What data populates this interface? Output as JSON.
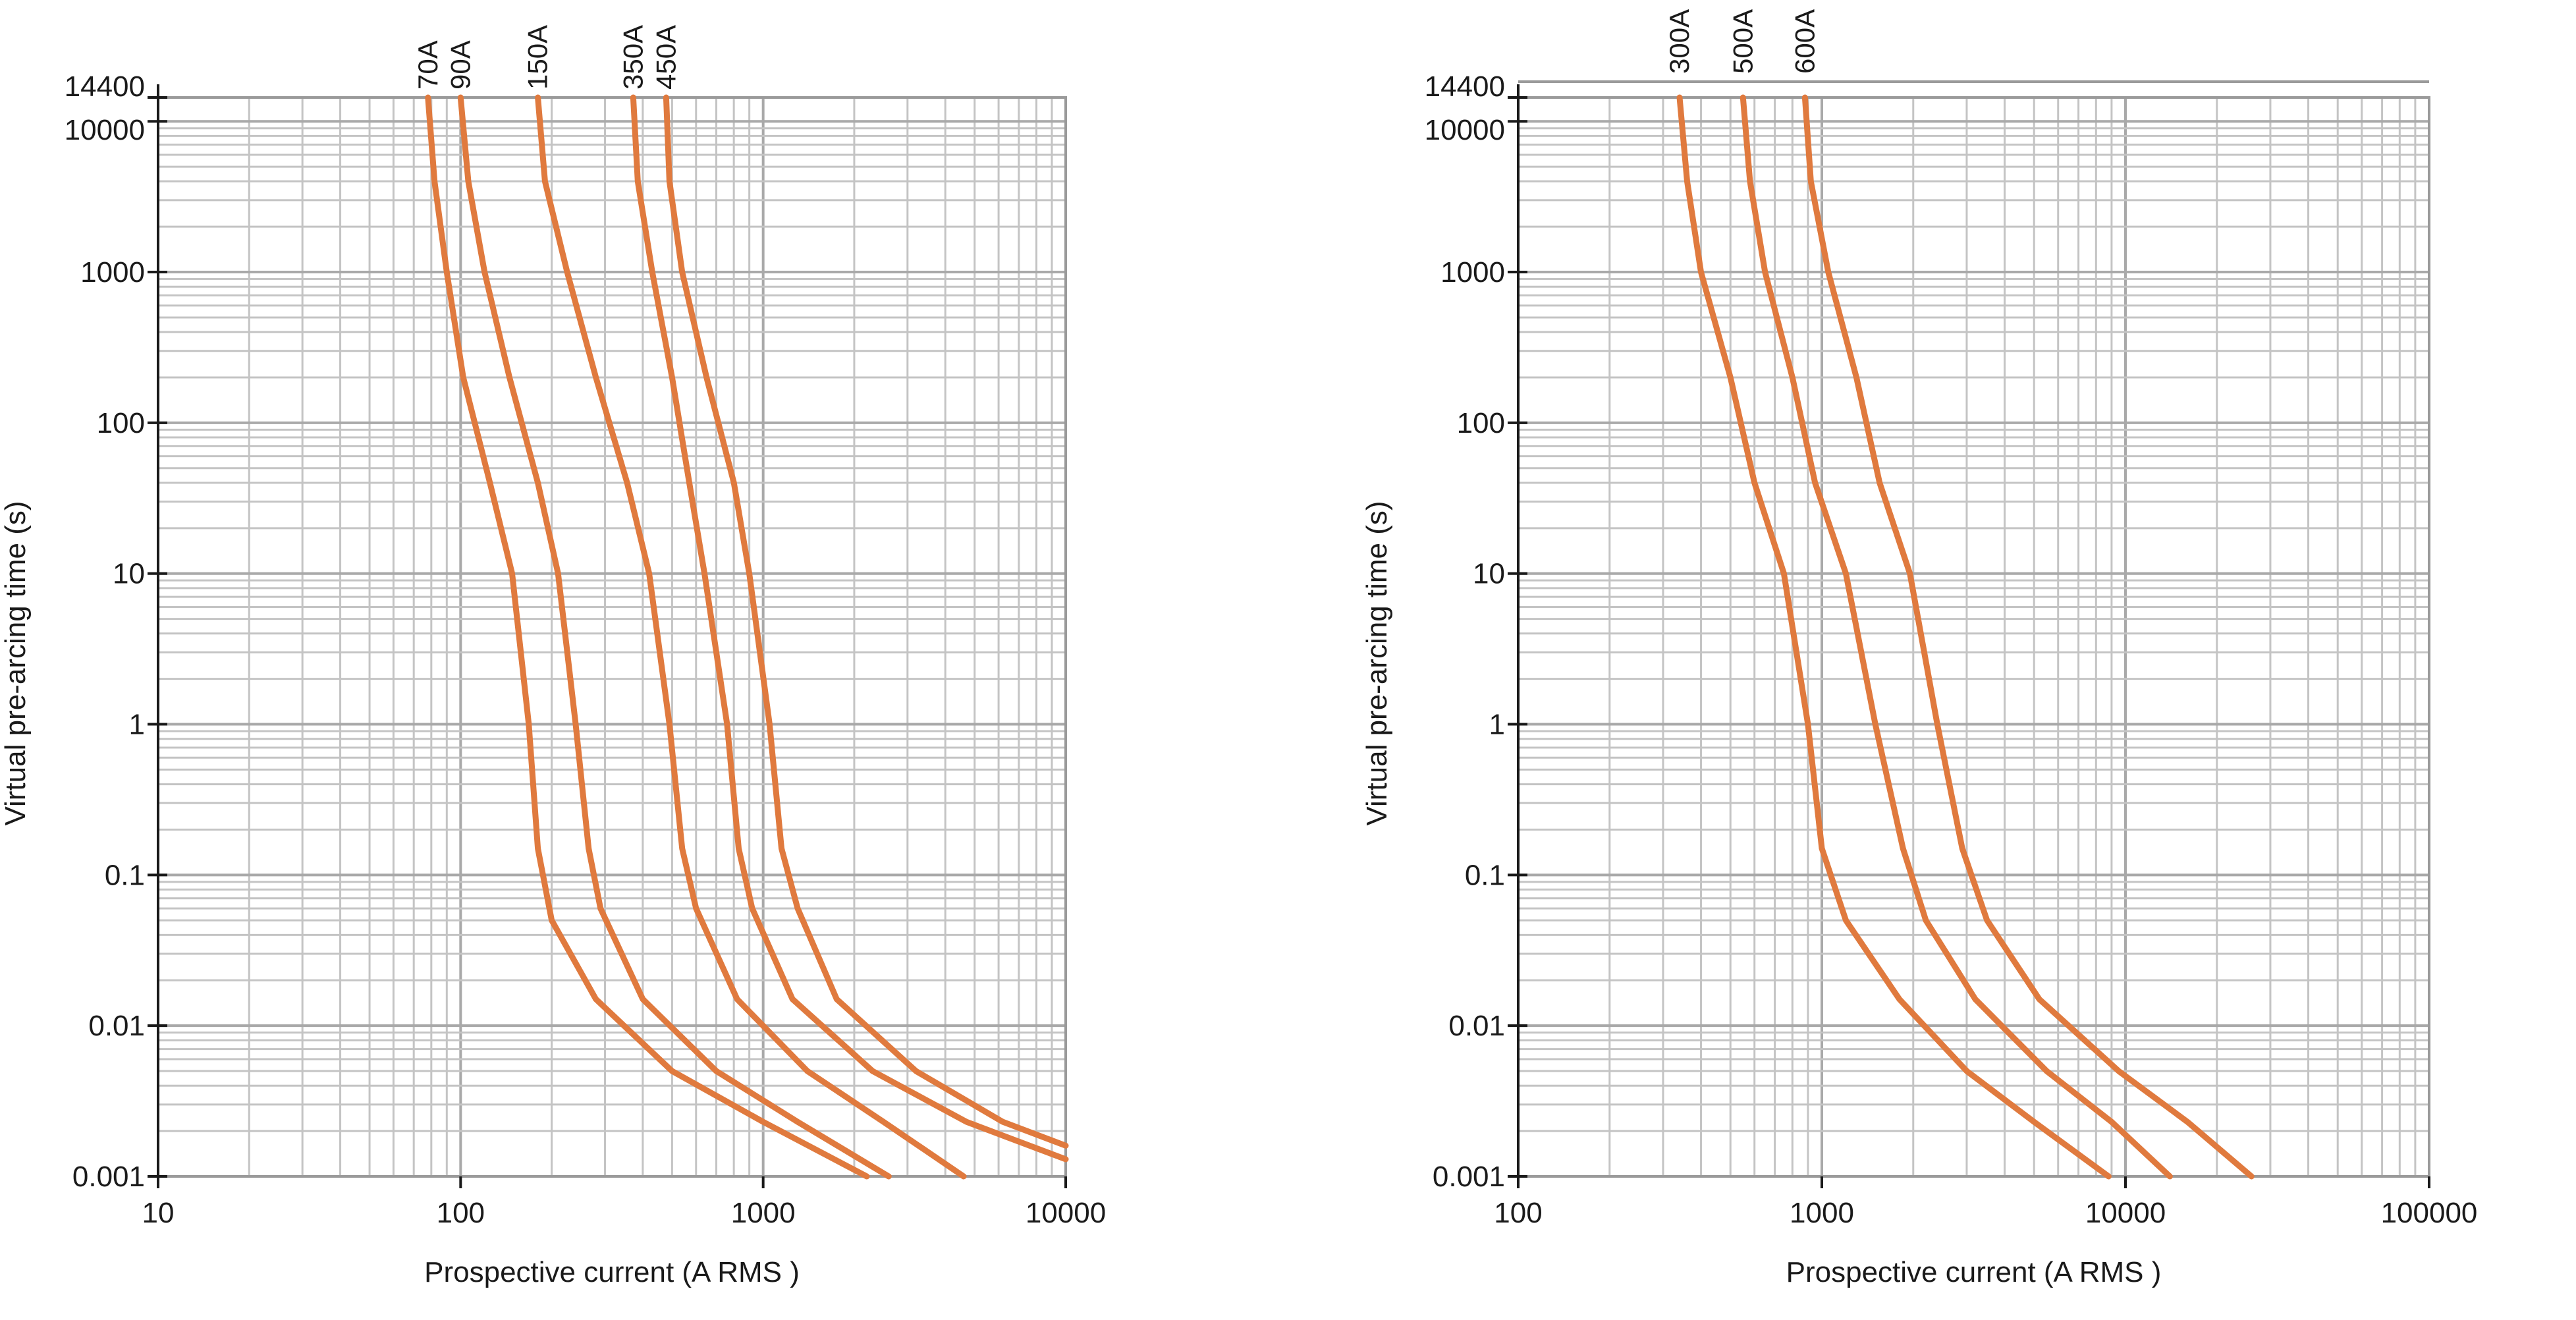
{
  "colors": {
    "curve": "#e07a3e",
    "grid": "#c4c4c4",
    "text": "#1a1a1a"
  },
  "chart_data": [
    {
      "type": "line",
      "scale": "log-log",
      "xlabel": "Prospective current (A RMS )",
      "ylabel": "Virtual pre-arcing time (s)",
      "xlim": [
        10,
        10000
      ],
      "ylim": [
        0.001,
        14400
      ],
      "x_ticks": [
        {
          "value": 10,
          "label": "10"
        },
        {
          "value": 100,
          "label": "100"
        },
        {
          "value": 1000,
          "label": "1000"
        },
        {
          "value": 10000,
          "label": "10000"
        }
      ],
      "y_ticks": [
        {
          "value": 0.001,
          "label": "0.001"
        },
        {
          "value": 0.01,
          "label": "0.01"
        },
        {
          "value": 0.1,
          "label": "0.1"
        },
        {
          "value": 1,
          "label": "1"
        },
        {
          "value": 10,
          "label": "10"
        },
        {
          "value": 100,
          "label": "100"
        },
        {
          "value": 1000,
          "label": "1000"
        },
        {
          "value": 10000,
          "label": "10000"
        },
        {
          "value": 14400,
          "label": "14400"
        }
      ],
      "series": [
        {
          "name": "70A",
          "points": [
            [
              78,
              14400
            ],
            [
              82,
              4000
            ],
            [
              90,
              1000
            ],
            [
              102,
              200
            ],
            [
              125,
              40
            ],
            [
              148,
              10
            ],
            [
              168,
              1
            ],
            [
              180,
              0.15
            ],
            [
              200,
              0.05
            ],
            [
              280,
              0.015
            ],
            [
              500,
              0.005
            ],
            [
              1000,
              0.0023
            ],
            [
              2200,
              0.001
            ]
          ]
        },
        {
          "name": "90A",
          "points": [
            [
              100,
              14400
            ],
            [
              106,
              4000
            ],
            [
              120,
              1000
            ],
            [
              145,
              200
            ],
            [
              180,
              40
            ],
            [
              210,
              10
            ],
            [
              240,
              1
            ],
            [
              265,
              0.15
            ],
            [
              290,
              0.06
            ],
            [
              400,
              0.015
            ],
            [
              700,
              0.005
            ],
            [
              1300,
              0.0023
            ],
            [
              2600,
              0.001
            ]
          ]
        },
        {
          "name": "150A",
          "points": [
            [
              180,
              14400
            ],
            [
              190,
              4000
            ],
            [
              225,
              1000
            ],
            [
              280,
              200
            ],
            [
              355,
              40
            ],
            [
              420,
              10
            ],
            [
              490,
              1
            ],
            [
              540,
              0.15
            ],
            [
              600,
              0.06
            ],
            [
              820,
              0.015
            ],
            [
              1400,
              0.005
            ],
            [
              2500,
              0.0023
            ],
            [
              4600,
              0.001
            ]
          ]
        },
        {
          "name": "350A",
          "points": [
            [
              372,
              14400
            ],
            [
              385,
              4000
            ],
            [
              430,
              1000
            ],
            [
              500,
              200
            ],
            [
              570,
              40
            ],
            [
              640,
              10
            ],
            [
              760,
              1
            ],
            [
              830,
              0.15
            ],
            [
              920,
              0.06
            ],
            [
              1250,
              0.015
            ],
            [
              2300,
              0.005
            ],
            [
              4700,
              0.0023
            ],
            [
              10000,
              0.0013
            ]
          ]
        },
        {
          "name": "450A",
          "points": [
            [
              478,
              14400
            ],
            [
              490,
              4000
            ],
            [
              540,
              1000
            ],
            [
              650,
              200
            ],
            [
              800,
              40
            ],
            [
              900,
              10
            ],
            [
              1050,
              1
            ],
            [
              1150,
              0.15
            ],
            [
              1300,
              0.06
            ],
            [
              1750,
              0.015
            ],
            [
              3200,
              0.005
            ],
            [
              6200,
              0.0023
            ],
            [
              10000,
              0.0016
            ]
          ]
        }
      ]
    },
    {
      "type": "line",
      "scale": "log-log",
      "xlabel": "Prospective current (A RMS )",
      "ylabel": "Virtual pre-arcing time (s)",
      "xlim": [
        100,
        100000
      ],
      "ylim": [
        0.001,
        14400
      ],
      "x_ticks": [
        {
          "value": 100,
          "label": "100"
        },
        {
          "value": 1000,
          "label": "1000"
        },
        {
          "value": 10000,
          "label": "10000"
        },
        {
          "value": 100000,
          "label": "100000"
        }
      ],
      "y_ticks": [
        {
          "value": 0.001,
          "label": "0.001"
        },
        {
          "value": 0.01,
          "label": "0.01"
        },
        {
          "value": 0.1,
          "label": "0.1"
        },
        {
          "value": 1,
          "label": "1"
        },
        {
          "value": 10,
          "label": "10"
        },
        {
          "value": 100,
          "label": "100"
        },
        {
          "value": 1000,
          "label": "1000"
        },
        {
          "value": 10000,
          "label": "10000"
        },
        {
          "value": 14400,
          "label": "14400"
        }
      ],
      "series": [
        {
          "name": "300A",
          "points": [
            [
              340,
              14400
            ],
            [
              360,
              4000
            ],
            [
              400,
              1000
            ],
            [
              500,
              200
            ],
            [
              600,
              40
            ],
            [
              750,
              10
            ],
            [
              900,
              1
            ],
            [
              1000,
              0.15
            ],
            [
              1200,
              0.05
            ],
            [
              1800,
              0.015
            ],
            [
              3000,
              0.005
            ],
            [
              5000,
              0.0023
            ],
            [
              8800,
              0.001
            ]
          ]
        },
        {
          "name": "500A",
          "points": [
            [
              550,
              14400
            ],
            [
              580,
              4000
            ],
            [
              650,
              1000
            ],
            [
              800,
              200
            ],
            [
              950,
              40
            ],
            [
              1200,
              10
            ],
            [
              1500,
              1
            ],
            [
              1850,
              0.15
            ],
            [
              2200,
              0.05
            ],
            [
              3200,
              0.015
            ],
            [
              5500,
              0.005
            ],
            [
              9000,
              0.0023
            ],
            [
              14000,
              0.001
            ]
          ]
        },
        {
          "name": "600A",
          "points": [
            [
              880,
              14400
            ],
            [
              920,
              4000
            ],
            [
              1050,
              1000
            ],
            [
              1300,
              200
            ],
            [
              1550,
              40
            ],
            [
              1950,
              10
            ],
            [
              2400,
              1
            ],
            [
              2900,
              0.15
            ],
            [
              3500,
              0.05
            ],
            [
              5200,
              0.015
            ],
            [
              9500,
              0.005
            ],
            [
              16000,
              0.0023
            ],
            [
              26000,
              0.001
            ]
          ]
        }
      ]
    }
  ]
}
